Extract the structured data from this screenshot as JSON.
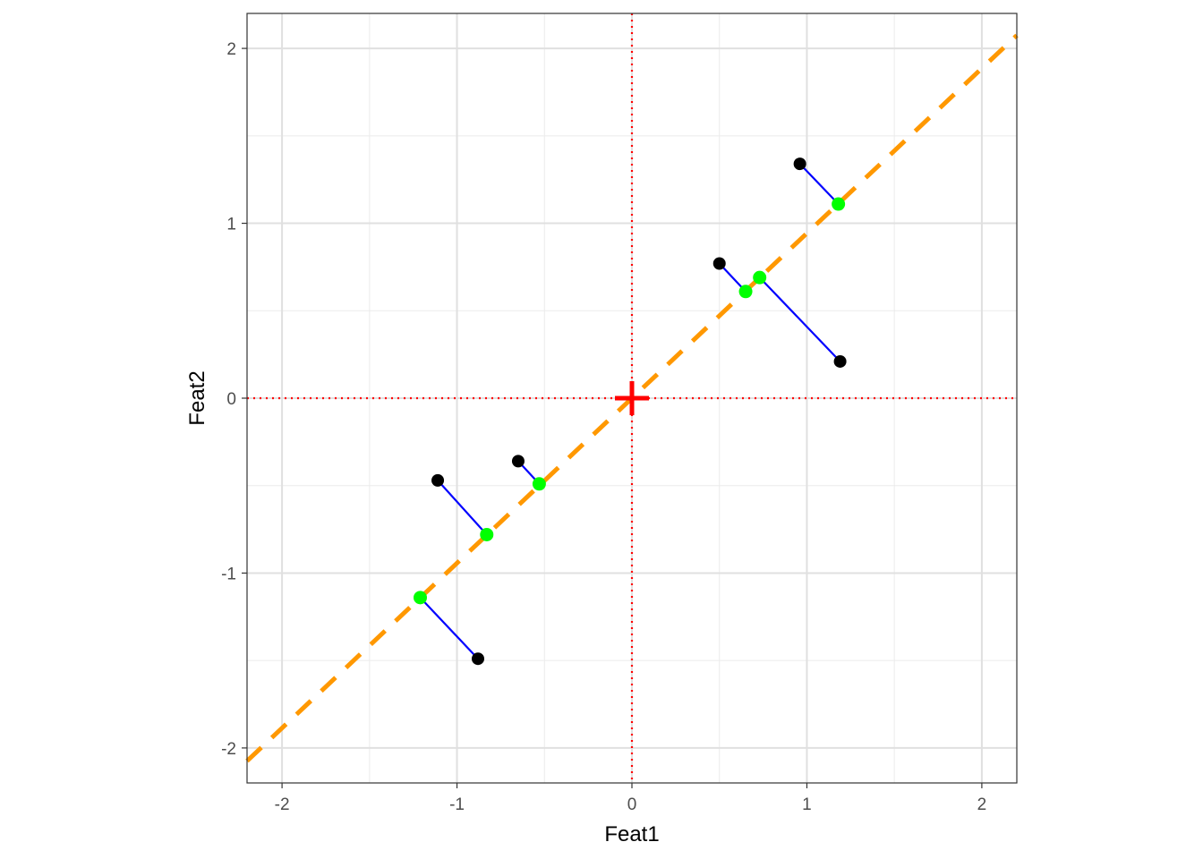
{
  "chart_data": {
    "type": "scatter",
    "title": "",
    "xlabel": "Feat1",
    "ylabel": "Feat2",
    "xlim": [
      -2.2,
      2.2
    ],
    "ylim": [
      -2.2,
      2.2
    ],
    "x_ticks": [
      -2,
      -1,
      0,
      1,
      2
    ],
    "y_ticks": [
      -2,
      -1,
      0,
      1,
      2
    ],
    "x_tick_labels": [
      "-2",
      "-1",
      "0",
      "1",
      "2"
    ],
    "y_tick_labels": [
      "-2",
      "-1",
      "0",
      "1",
      "2"
    ],
    "grid": true,
    "legend": "none",
    "points": [
      {
        "x": 0.96,
        "y": 1.34
      },
      {
        "x": 0.5,
        "y": 0.77
      },
      {
        "x": 1.19,
        "y": 0.21
      },
      {
        "x": -0.65,
        "y": -0.36
      },
      {
        "x": -1.11,
        "y": -0.47
      },
      {
        "x": -0.88,
        "y": -1.49
      }
    ],
    "projections": [
      {
        "x": 1.18,
        "y": 1.11
      },
      {
        "x": 0.65,
        "y": 0.61
      },
      {
        "x": 0.73,
        "y": 0.69
      },
      {
        "x": -0.53,
        "y": -0.49
      },
      {
        "x": -0.83,
        "y": -0.78
      },
      {
        "x": -1.21,
        "y": -1.14
      }
    ],
    "principal_axis": {
      "slope": 0.943,
      "intercept": 0
    },
    "center": {
      "x": 0,
      "y": 0
    },
    "colors": {
      "points": "#000000",
      "projections": "#00ff00",
      "segments": "#0000ff",
      "principal_axis": "#ff9800",
      "reference_lines": "#ff0000",
      "center": "#ff0000"
    }
  }
}
